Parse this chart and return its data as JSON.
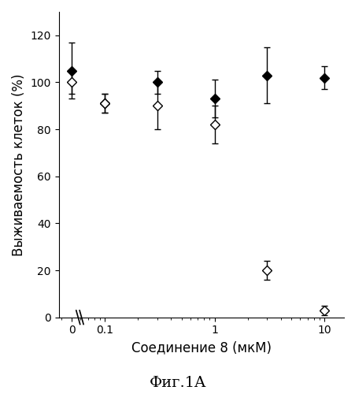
{
  "title": "",
  "xlabel": "Соединение 8 (мкМ)",
  "ylabel": "Выживаемость клеток (%)",
  "caption": "Фиг.1A",
  "ylim": [
    0,
    130
  ],
  "yticks": [
    0,
    20,
    40,
    60,
    80,
    100,
    120
  ],
  "filled_x": [
    0.05,
    0.1,
    0.3,
    1.0,
    3.0,
    10.0
  ],
  "filled_y": [
    105,
    91,
    100,
    93,
    103,
    102
  ],
  "filled_yerr": [
    12,
    4,
    5,
    8,
    12,
    5
  ],
  "open_x": [
    0.05,
    0.1,
    0.3,
    1.0,
    3.0,
    10.0
  ],
  "open_y": [
    100,
    91,
    90,
    82,
    20,
    3
  ],
  "open_yerr": [
    5,
    4,
    10,
    8,
    4,
    2
  ],
  "xtick_positions": [
    0.05,
    0.1,
    1.0,
    10.0
  ],
  "xtick_labels": [
    "0",
    "0.1",
    "1",
    "10"
  ],
  "line_color": "#000000",
  "bg_color": "#ffffff",
  "fontsize_label": 12,
  "fontsize_tick": 10,
  "fontsize_caption": 14
}
